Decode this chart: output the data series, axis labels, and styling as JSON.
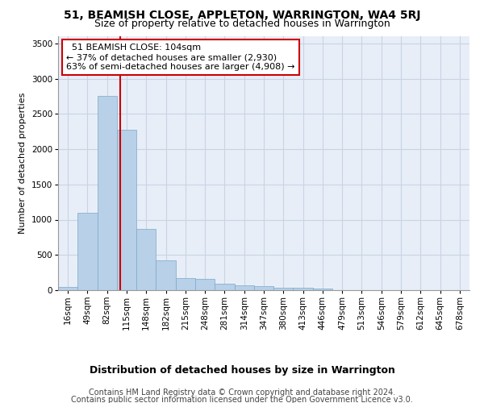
{
  "title": "51, BEAMISH CLOSE, APPLETON, WARRINGTON, WA4 5RJ",
  "subtitle": "Size of property relative to detached houses in Warrington",
  "xlabel": "Distribution of detached houses by size in Warrington",
  "ylabel": "Number of detached properties",
  "footer_line1": "Contains HM Land Registry data © Crown copyright and database right 2024.",
  "footer_line2": "Contains public sector information licensed under the Open Government Licence v3.0.",
  "annotation_line1": "  51 BEAMISH CLOSE: 104sqm  ",
  "annotation_line2": "← 37% of detached houses are smaller (2,930)",
  "annotation_line3": "63% of semi-detached houses are larger (4,908) →",
  "bar_color": "#b8d0e8",
  "bar_edge_color": "#7aaac8",
  "redline_color": "#cc0000",
  "annotation_box_edge_color": "#cc0000",
  "grid_color": "#c8d4e4",
  "bg_color": "#e8eef8",
  "categories": [
    "16sqm",
    "49sqm",
    "82sqm",
    "115sqm",
    "148sqm",
    "182sqm",
    "215sqm",
    "248sqm",
    "281sqm",
    "314sqm",
    "347sqm",
    "380sqm",
    "413sqm",
    "446sqm",
    "479sqm",
    "513sqm",
    "546sqm",
    "579sqm",
    "612sqm",
    "645sqm",
    "678sqm"
  ],
  "values": [
    50,
    1100,
    2750,
    2280,
    870,
    420,
    170,
    160,
    90,
    65,
    55,
    35,
    30,
    25,
    5,
    3,
    2,
    1,
    1,
    0,
    0
  ],
  "ylim": [
    0,
    3600
  ],
  "yticks": [
    0,
    500,
    1000,
    1500,
    2000,
    2500,
    3000,
    3500
  ],
  "redline_x": 2.67,
  "title_fontsize": 10,
  "subtitle_fontsize": 9,
  "ylabel_fontsize": 8,
  "xlabel_fontsize": 9,
  "tick_fontsize": 7.5,
  "annotation_fontsize": 8,
  "footer_fontsize": 7
}
